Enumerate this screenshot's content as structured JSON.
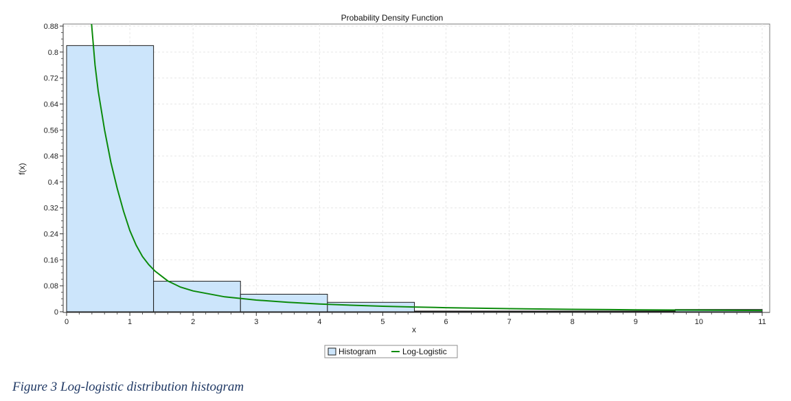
{
  "caption": "Figure 3 Log-logistic distribution histogram",
  "colors": {
    "bar_fill": "#cce5fb",
    "bar_stroke": "#1a1a1a",
    "curve": "#0a8a0a",
    "grid": "#e6e6e6"
  },
  "chart_data": {
    "type": "bar",
    "title": "Probability Density Function",
    "xlabel": "x",
    "ylabel": "f(x)",
    "xlim": [
      0,
      11
    ],
    "ylim": [
      0,
      0.88
    ],
    "x_ticks": [
      0,
      1,
      2,
      3,
      4,
      5,
      6,
      7,
      8,
      9,
      10,
      11
    ],
    "y_ticks": [
      0,
      0.08,
      0.16,
      0.24,
      0.32,
      0.4,
      0.48,
      0.56,
      0.64,
      0.72,
      0.8,
      0.88
    ],
    "y_tick_labels": [
      "0",
      "0.08",
      "0.16",
      "0.24",
      "0.32",
      "0.4",
      "0.48",
      "0.56",
      "0.64",
      "0.72",
      "0.8",
      "0.88"
    ],
    "grid": true,
    "legend_position": "bottom-center",
    "series": [
      {
        "name": "Histogram",
        "type": "bar",
        "bins": [
          {
            "x0": 0.0,
            "x1": 1.375,
            "value": 0.82
          },
          {
            "x0": 1.375,
            "x1": 2.75,
            "value": 0.094
          },
          {
            "x0": 2.75,
            "x1": 4.125,
            "value": 0.054
          },
          {
            "x0": 4.125,
            "x1": 5.5,
            "value": 0.029
          },
          {
            "x0": 5.5,
            "x1": 6.875,
            "value": 0.001
          },
          {
            "x0": 6.875,
            "x1": 8.25,
            "value": 0.0
          },
          {
            "x0": 8.25,
            "x1": 9.625,
            "value": 0.0
          },
          {
            "x0": 9.625,
            "x1": 11.0,
            "value": 0.007
          }
        ]
      },
      {
        "name": "Log-Logistic",
        "type": "line",
        "x": [
          0.38,
          0.45,
          0.5,
          0.6,
          0.7,
          0.8,
          0.9,
          1.0,
          1.1,
          1.2,
          1.3,
          1.4,
          1.6,
          1.8,
          2.0,
          2.5,
          3.0,
          3.5,
          4.0,
          4.5,
          5.0,
          5.5,
          6.0,
          7.0,
          8.0,
          9.0,
          10.0,
          11.0
        ],
        "y": [
          0.92,
          0.76,
          0.68,
          0.56,
          0.46,
          0.38,
          0.31,
          0.25,
          0.205,
          0.17,
          0.145,
          0.125,
          0.095,
          0.076,
          0.064,
          0.046,
          0.036,
          0.029,
          0.024,
          0.02,
          0.017,
          0.0145,
          0.0125,
          0.0095,
          0.0075,
          0.006,
          0.005,
          0.004
        ]
      }
    ]
  }
}
